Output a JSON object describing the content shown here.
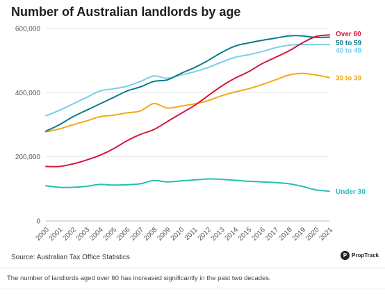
{
  "chart_data": {
    "type": "line",
    "title": "Number of Australian landlords by age",
    "xlabel": "",
    "ylabel": "",
    "x": [
      "2000",
      "2001",
      "2002",
      "2003",
      "2004",
      "2005",
      "2006",
      "2007",
      "2008",
      "2009",
      "2010",
      "2011",
      "2012",
      "2013",
      "2014",
      "2015",
      "2016",
      "2017",
      "2018",
      "2019",
      "2020",
      "2021"
    ],
    "y_ticks": [
      "0",
      "200,000",
      "400,000",
      "600,000"
    ],
    "ylim": [
      0,
      600000
    ],
    "grid": "horizontal",
    "legend": "direct-labels-right",
    "series": [
      {
        "name": "Over 60",
        "color": "#d6163f",
        "values": [
          170000,
          170000,
          178000,
          190000,
          205000,
          225000,
          250000,
          270000,
          285000,
          310000,
          335000,
          360000,
          390000,
          420000,
          445000,
          465000,
          490000,
          510000,
          530000,
          555000,
          575000,
          580000
        ]
      },
      {
        "name": "50 to 59",
        "color": "#0d7a8c",
        "values": [
          280000,
          300000,
          325000,
          345000,
          365000,
          385000,
          405000,
          418000,
          435000,
          440000,
          460000,
          478000,
          500000,
          525000,
          545000,
          555000,
          563000,
          570000,
          577000,
          577000,
          572000,
          573000
        ]
      },
      {
        "name": "40 to 49",
        "color": "#79cfe8",
        "values": [
          328000,
          345000,
          365000,
          385000,
          405000,
          412000,
          420000,
          435000,
          452000,
          445000,
          455000,
          465000,
          478000,
          495000,
          510000,
          518000,
          528000,
          540000,
          548000,
          550000,
          550000,
          550000
        ]
      },
      {
        "name": "30 to 39",
        "color": "#f0aa16",
        "values": [
          278000,
          287000,
          300000,
          312000,
          325000,
          330000,
          337000,
          343000,
          366000,
          352000,
          358000,
          365000,
          375000,
          390000,
          402000,
          412000,
          425000,
          440000,
          455000,
          460000,
          455000,
          447000
        ]
      },
      {
        "name": "Under 30",
        "color": "#23bfb1",
        "values": [
          110000,
          105000,
          105000,
          108000,
          114000,
          112000,
          113000,
          116000,
          126000,
          122000,
          125000,
          128000,
          131000,
          130000,
          127000,
          124000,
          122000,
          120000,
          116000,
          108000,
          97000,
          93000
        ]
      }
    ]
  },
  "footer": {
    "source": "Source: Australian Tax Office Statistics",
    "brand": "PropTrack",
    "brand_mark": "P",
    "caption": "The number of landlords aged over 60 has increased significantly in the past two decades."
  }
}
